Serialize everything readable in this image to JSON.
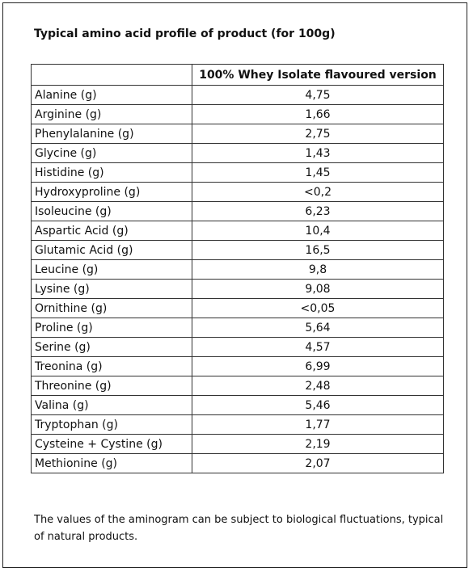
{
  "header": {
    "title": "Typical amino acid profile of product (for 100g)"
  },
  "table": {
    "columns": [
      "100% Whey Isolate flavoured version"
    ],
    "rows": [
      [
        "Alanine (g)",
        "4,75"
      ],
      [
        "Arginine (g)",
        "1,66"
      ],
      [
        "Phenylalanine (g)",
        "2,75"
      ],
      [
        "Glycine (g)",
        "1,43"
      ],
      [
        "Histidine (g)",
        "1,45"
      ],
      [
        "Hydroxyproline (g)",
        "<0,2"
      ],
      [
        "Isoleucine (g)",
        "6,23"
      ],
      [
        "Aspartic Acid (g)",
        "10,4"
      ],
      [
        "Glutamic Acid (g)",
        "16,5"
      ],
      [
        "Leucine (g)",
        "9,8"
      ],
      [
        "Lysine (g)",
        "9,08"
      ],
      [
        "Ornithine (g)",
        "<0,05"
      ],
      [
        "Proline (g)",
        "5,64"
      ],
      [
        "Serine (g)",
        "4,57"
      ],
      [
        "Treonina (g)",
        "6,99"
      ],
      [
        "Threonine (g)",
        "2,48"
      ],
      [
        "Valina (g)",
        "5,46"
      ],
      [
        "Tryptophan (g)",
        "1,77"
      ],
      [
        "Cysteine + Cystine (g)",
        "2,19"
      ],
      [
        "Methionine (g)",
        "2,07"
      ]
    ]
  },
  "footer": {
    "note": "The values of the aminogram can be subject to biological fluctuations, typical of natural products."
  }
}
